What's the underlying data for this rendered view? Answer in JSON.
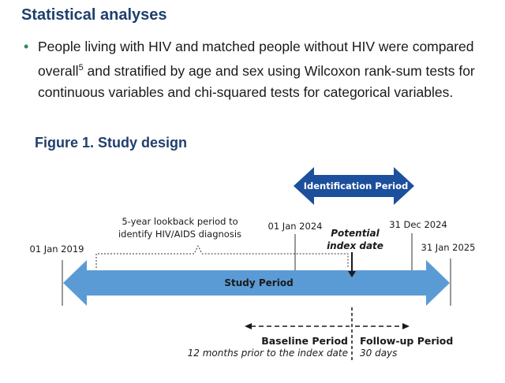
{
  "heading": "Statistical analyses",
  "bullet": {
    "text_before": "People living with HIV and matched people without HIV were compared overall",
    "sup": "5",
    "text_after": " and stratified by age and sex using Wilcoxon rank-sum tests for continuous variables and chi-squared tests for categorical variables."
  },
  "figure": {
    "title": "Figure 1. Study design",
    "identification_period": "Identification Period",
    "study_period": "Study Period",
    "lookback_line1": "5-year lookback period to",
    "lookback_line2": "identify HIV/AIDS diagnosis",
    "dates": {
      "start": "01 Jan 2019",
      "id_start": "01 Jan 2024",
      "id_end": "31 Dec 2024",
      "end": "31 Jan 2025"
    },
    "index_line1": "Potential",
    "index_line2": "index date",
    "baseline_title": "Baseline Period",
    "baseline_sub": "12 months prior to the index date",
    "followup_title": "Follow-up Period",
    "followup_sub": "30 days",
    "colors": {
      "dark_blue": "#1c4f9c",
      "light_blue": "#5b9bd5",
      "title_blue": "#1f3f6e"
    }
  }
}
